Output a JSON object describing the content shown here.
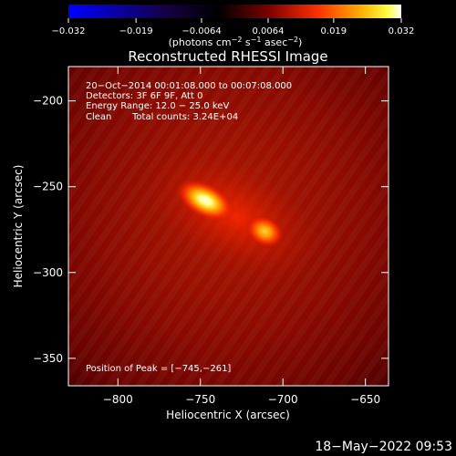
{
  "chart_data": {
    "type": "heatmap",
    "title": "Reconstructed RHESSI Image",
    "xlabel": "Heliocentric X (arcsec)",
    "ylabel": "Heliocentric Y (arcsec)",
    "xlim": [
      -830,
      -636
    ],
    "ylim": [
      -366,
      -180
    ],
    "x_ticks": [
      -800,
      -750,
      -700,
      -650
    ],
    "x_tick_labels": [
      "−800",
      "−750",
      "−700",
      "−650"
    ],
    "y_ticks": [
      -200,
      -250,
      -300,
      -350
    ],
    "y_tick_labels": [
      "−200",
      "−250",
      "−300",
      "−350"
    ],
    "colorbar": {
      "range": [
        -0.032,
        0.032
      ],
      "ticks": [
        -0.032,
        -0.019,
        -0.0064,
        0.0064,
        0.019,
        0.032
      ],
      "tick_labels": [
        "−0.032",
        "−0.019",
        "−0.0064",
        "0.0064",
        "0.019",
        "0.032"
      ],
      "units_prefix": "(photons cm",
      "units_exp1": "−2",
      "units_mid1": " s",
      "units_exp2": "−1",
      "units_mid2": " asec",
      "units_exp3": "−2",
      "units_suffix": ")",
      "colors": [
        "#0000ff",
        "#000000",
        "#ff0000",
        "#ffa500",
        "#ffff00",
        "#ffffff"
      ]
    },
    "sources": [
      {
        "x": -747,
        "y": -258,
        "intensity": 0.032
      },
      {
        "x": -711,
        "y": -276,
        "intensity": 0.022
      }
    ],
    "annotations": {
      "line1": "20−Oct−2014 00:01:08.000 to 00:07:08.000",
      "line2": "Detectors: 3F 6F 9F, Att 0",
      "line3": "Energy Range: 12.0 − 25.0 keV",
      "line4_a": "Clean",
      "line4_b": "Total counts: 3.24E+04",
      "peak": "Position of Peak = [−745,−261]"
    }
  },
  "footer": {
    "timestamp": "18−May−2022 09:53"
  }
}
